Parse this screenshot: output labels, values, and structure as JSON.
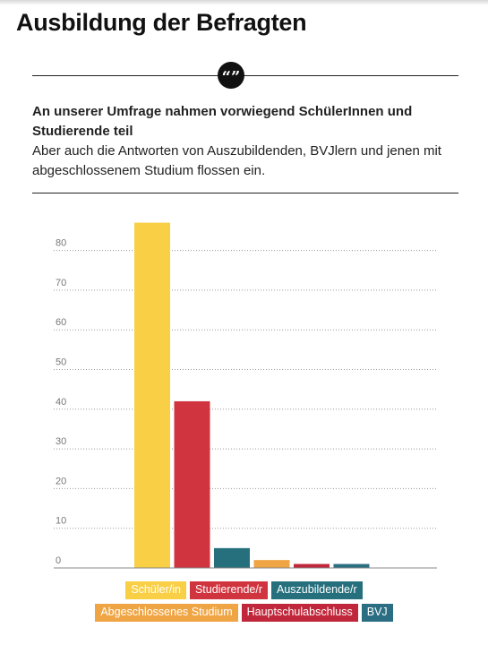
{
  "header": {
    "title": "Ausbildung der Befragten",
    "quote_glyph": "“”"
  },
  "summary": {
    "lead": "An unserer Umfrage nahmen vorwiegend SchülerInnen und Studierende teil",
    "body": "Aber auch die Antworten von Auszubildenden, BVJlern und jenen mit abgeschlossenem Studium flossen ein."
  },
  "chart_data": {
    "type": "bar",
    "categories": [
      "Schüler/in",
      "Studierende/r",
      "Auszubildende/r",
      "Abgeschlossenes Studium",
      "Hauptschulabschluss",
      "BVJ"
    ],
    "values": [
      87,
      42,
      5,
      2,
      1,
      1
    ],
    "colors": [
      "#f9cf45",
      "#d0343f",
      "#26707d",
      "#f0a545",
      "#c0273a",
      "#2b6e83"
    ],
    "yticks": [
      0,
      10,
      20,
      30,
      40,
      50,
      60,
      70,
      80
    ],
    "ylim": [
      0,
      90
    ],
    "grid": true,
    "grid_style": "dotted",
    "title": "",
    "xlabel": "",
    "ylabel": "",
    "legend_rows": [
      [
        0,
        1,
        2
      ],
      [
        3,
        4,
        5
      ]
    ]
  }
}
